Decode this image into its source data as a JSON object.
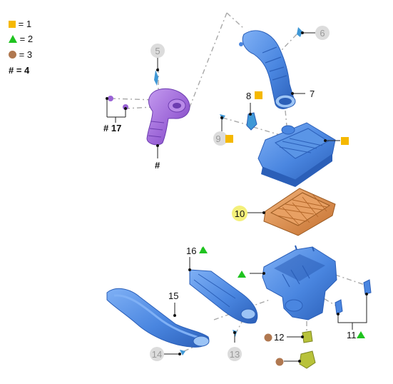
{
  "legend": {
    "items": [
      {
        "symbol": "square",
        "color": "#f5b800",
        "text": "= 1"
      },
      {
        "symbol": "triangle",
        "color": "#1fc31f",
        "text": "= 2"
      },
      {
        "symbol": "circle",
        "color": "#b07850",
        "text": "= 3"
      },
      {
        "symbol": "hash",
        "color": "#111111",
        "text": "# = 4"
      }
    ]
  },
  "callouts": {
    "c5": "5",
    "c6": "6",
    "c7": "7",
    "c8": "8",
    "c9": "9",
    "c10": "10",
    "c11": "11",
    "c12": "12",
    "c13": "13",
    "c14": "14",
    "c15": "15",
    "c16": "16",
    "c17": "# 17",
    "hash_duct": "#"
  },
  "colors": {
    "part_blue": "#4a86e0",
    "part_blue_dark": "#2b5fb8",
    "part_purple": "#9a63d6",
    "filter_orange": "#d98a4a",
    "clip_yellow": "#b8c23a",
    "leader_dash": "#a8a8a8",
    "faded_label": "#dcdcdc",
    "highlight_10": "#f4f07a"
  }
}
